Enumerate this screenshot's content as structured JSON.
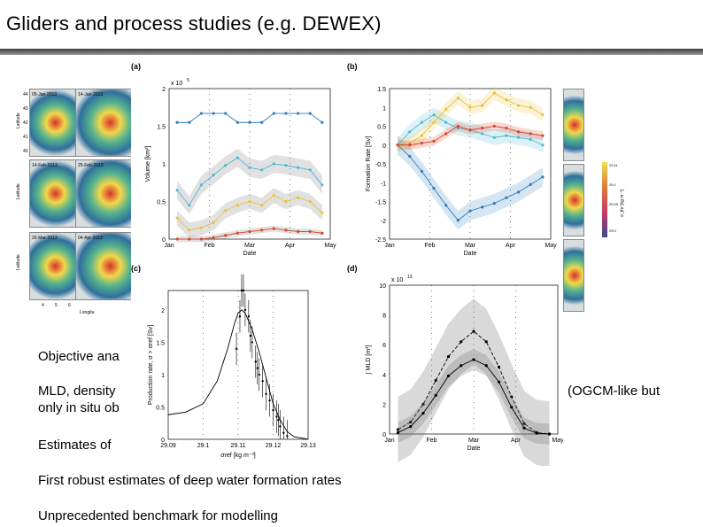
{
  "slide": {
    "title": "Gliders and process studies (e.g. DEWEX)",
    "bullets": [
      "Objective ana",
      "MLD, density",
      "(OGCM-like but",
      "only in situ ob",
      "Estimates of",
      "First robust estimates of deep water formation rates",
      "Unprecedented benchmark for modelling"
    ]
  },
  "maps": {
    "dates": [
      "05-Jan-2013",
      "14-Jan-2013",
      "14-Feb-2013",
      "25-Feb-2013",
      "26-Mar-2013",
      "04-Apr-2013"
    ],
    "latitude_label": "Latitude",
    "longitude_label": "Longitu",
    "lat_ticks": [
      "44",
      "43",
      "42",
      "41",
      "40"
    ],
    "lon_ticks": [
      "4",
      "5",
      "6"
    ],
    "colorbar_ticks": [
      "29.11",
      "29.1",
      "29.09",
      "29.0"
    ],
    "colorbar_label": "σ_thr [kg m⁻³]"
  },
  "chart_data": [
    {
      "panel": "(a)",
      "type": "line",
      "title": "",
      "xlabel": "Date",
      "ylabel": "Volume [km³]",
      "yexp": "x 10",
      "yexp_power": "5",
      "ylim": [
        0,
        2
      ],
      "yticks": [
        "0",
        "0.5",
        "1",
        "1.5",
        "2"
      ],
      "xticks": [
        "Jan",
        "Feb",
        "Mar",
        "Apr",
        "May"
      ],
      "x": [
        0.2,
        0.5,
        0.8,
        1.1,
        1.4,
        1.7,
        2.0,
        2.3,
        2.6,
        2.9,
        3.2,
        3.5,
        3.8
      ],
      "series": [
        {
          "name": "blue",
          "color": "#2b7bbf",
          "values": [
            1.55,
            1.55,
            1.67,
            1.67,
            1.67,
            1.55,
            1.55,
            1.55,
            1.67,
            1.67,
            1.67,
            1.67,
            1.55
          ],
          "band": 0
        },
        {
          "name": "cyan",
          "color": "#4fb8d3",
          "values": [
            0.65,
            0.45,
            0.72,
            0.85,
            0.98,
            1.08,
            0.95,
            0.92,
            1.0,
            0.98,
            0.95,
            0.92,
            0.72
          ],
          "band": 0.12
        },
        {
          "name": "yellow",
          "color": "#e9c33a",
          "values": [
            0.28,
            0.12,
            0.15,
            0.22,
            0.38,
            0.45,
            0.5,
            0.45,
            0.58,
            0.5,
            0.55,
            0.5,
            0.35
          ],
          "band": 0.1
        },
        {
          "name": "red",
          "color": "#d9452b",
          "values": [
            0.0,
            0.0,
            0.0,
            0.02,
            0.05,
            0.08,
            0.1,
            0.12,
            0.14,
            0.12,
            0.1,
            0.1,
            0.08
          ],
          "band": 0.04
        }
      ]
    },
    {
      "panel": "(b)",
      "type": "line",
      "title": "",
      "xlabel": "Date",
      "ylabel": "Formation Rate [Sv]",
      "ylim": [
        -2.5,
        1.5
      ],
      "yticks": [
        "-2.5",
        "-2",
        "-1.5",
        "-1",
        "-0.5",
        "0",
        "0.5",
        "1",
        "1.5"
      ],
      "xticks": [
        "Jan",
        "Feb",
        "Mar",
        "Apr",
        "May"
      ],
      "x": [
        0.2,
        0.5,
        0.8,
        1.1,
        1.4,
        1.7,
        2.0,
        2.3,
        2.6,
        2.9,
        3.2,
        3.5,
        3.8
      ],
      "series": [
        {
          "name": "blue",
          "color": "#2b7bbf",
          "values": [
            0.0,
            -0.3,
            -0.7,
            -1.15,
            -1.6,
            -2.0,
            -1.75,
            -1.65,
            -1.55,
            -1.4,
            -1.25,
            -1.05,
            -0.85
          ],
          "band": 0.25
        },
        {
          "name": "cyan",
          "color": "#4fb8d3",
          "values": [
            0.0,
            0.35,
            0.6,
            0.8,
            0.6,
            0.45,
            0.4,
            0.3,
            0.2,
            0.25,
            0.2,
            0.15,
            0.0
          ],
          "band": 0.2
        },
        {
          "name": "yellow",
          "color": "#e9c33a",
          "values": [
            0.0,
            0.05,
            0.25,
            0.6,
            0.95,
            1.25,
            1.0,
            1.05,
            1.38,
            1.2,
            1.05,
            1.0,
            0.8
          ],
          "band": 0.18
        },
        {
          "name": "red",
          "color": "#d9452b",
          "values": [
            0.0,
            0.0,
            0.05,
            0.1,
            0.3,
            0.5,
            0.4,
            0.45,
            0.5,
            0.45,
            0.35,
            0.3,
            0.25
          ],
          "band": 0.12
        }
      ]
    },
    {
      "panel": "(c)",
      "type": "scatter",
      "xlabel": "σref [kg m⁻³]",
      "ylabel": "Production rate, σ > σref [Sv]",
      "xlim": [
        29.09,
        29.13
      ],
      "ylim": [
        0,
        2.3
      ],
      "xticks": [
        "29.09",
        "29.1",
        "29.11",
        "29.12",
        "29.13"
      ],
      "yticks": [
        "0",
        "0.5",
        "1",
        "1.5",
        "2"
      ],
      "curve_x": [
        29.09,
        29.095,
        29.1,
        29.104,
        29.107,
        29.109,
        29.11,
        29.111,
        29.112,
        29.114,
        29.116,
        29.118,
        29.12,
        29.122,
        29.124,
        29.126,
        29.13
      ],
      "curve_y": [
        0.38,
        0.42,
        0.55,
        0.9,
        1.4,
        1.8,
        1.95,
        2.0,
        1.95,
        1.7,
        1.35,
        0.95,
        0.55,
        0.3,
        0.12,
        0.04,
        0.0
      ],
      "points_x": [
        29.1095,
        29.1105,
        29.111,
        29.1115,
        29.112,
        29.113,
        29.1135,
        29.114,
        29.115,
        29.1155,
        29.116,
        29.117,
        29.118,
        29.119,
        29.12,
        29.121,
        29.1215,
        29.122,
        29.123,
        29.124
      ],
      "points_y": [
        1.4,
        1.9,
        2.3,
        2.3,
        2.0,
        1.9,
        1.6,
        1.5,
        1.2,
        1.1,
        1.0,
        0.9,
        0.7,
        0.6,
        0.45,
        0.35,
        0.3,
        0.2,
        0.1,
        0.05
      ]
    },
    {
      "panel": "(d)",
      "type": "line",
      "xlabel": "Date",
      "ylabel": "∫ MLD [m³]",
      "yexp": "x 10",
      "yexp_power": "13",
      "ylim": [
        0,
        10
      ],
      "yticks": [
        "0",
        "2",
        "4",
        "6",
        "8",
        "10"
      ],
      "xticks": [
        "Jan",
        "Feb",
        "Mar",
        "Apr",
        "May"
      ],
      "x": [
        0.2,
        0.5,
        0.8,
        1.1,
        1.4,
        1.7,
        2.0,
        2.3,
        2.6,
        2.9,
        3.2,
        3.5,
        3.8
      ],
      "series": [
        {
          "name": "dashed",
          "color": "#000000",
          "values": [
            0.3,
            0.8,
            2.0,
            3.6,
            5.2,
            6.2,
            6.9,
            6.2,
            4.5,
            2.5,
            0.7,
            0.1,
            0.0
          ],
          "band": 2.2
        },
        {
          "name": "solid",
          "color": "#000000",
          "values": [
            0.1,
            0.5,
            1.4,
            2.6,
            3.9,
            4.6,
            5.0,
            4.6,
            3.5,
            1.8,
            0.4,
            0.05,
            0.0
          ],
          "band": 0.7
        }
      ]
    }
  ]
}
